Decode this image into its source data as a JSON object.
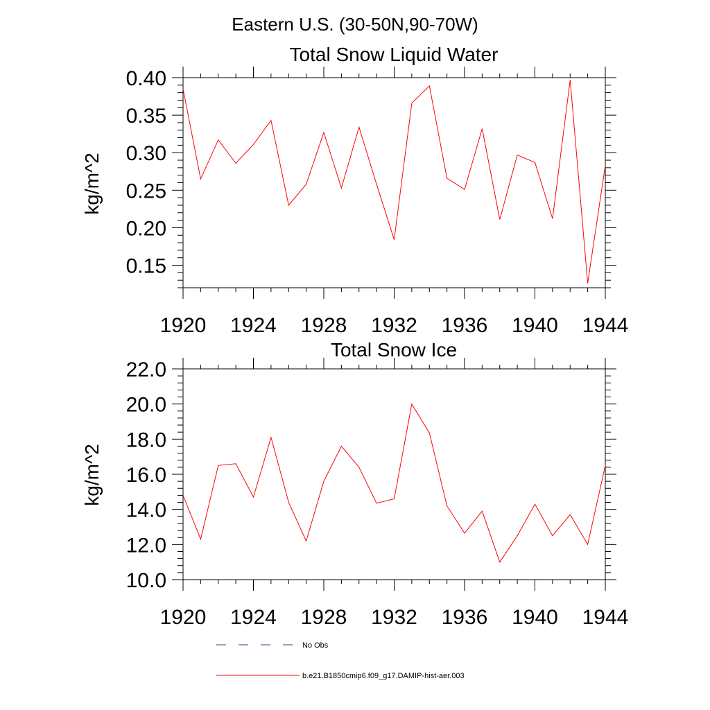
{
  "page_title": "Eastern U.S. (30-50N,90-70W)",
  "chart_data": [
    {
      "type": "line",
      "title": "Total Snow Liquid Water",
      "xlabel": "",
      "ylabel": "kg/m^2",
      "xlim": [
        1920,
        1944
      ],
      "ylim": [
        0.12,
        0.4
      ],
      "x_ticks": [
        "1920",
        "1924",
        "1928",
        "1932",
        "1936",
        "1940",
        "1944"
      ],
      "y_ticks": [
        "0.15",
        "0.20",
        "0.25",
        "0.30",
        "0.35",
        "0.40"
      ],
      "series": [
        {
          "name": "b.e21.B1850cmip6.f09_g17.DAMIP-hist-aer.003",
          "color": "#ff0000",
          "x": [
            1920,
            1921,
            1922,
            1923,
            1924,
            1925,
            1926,
            1927,
            1928,
            1929,
            1930,
            1931,
            1932,
            1933,
            1934,
            1935,
            1936,
            1937,
            1938,
            1939,
            1940,
            1941,
            1942,
            1943,
            1944
          ],
          "values": [
            0.385,
            0.265,
            0.317,
            0.286,
            0.311,
            0.343,
            0.23,
            0.258,
            0.327,
            0.253,
            0.334,
            0.258,
            0.184,
            0.366,
            0.389,
            0.266,
            0.251,
            0.332,
            0.211,
            0.297,
            0.287,
            0.212,
            0.397,
            0.126,
            0.283
          ]
        }
      ]
    },
    {
      "type": "line",
      "title": "Total Snow Ice",
      "xlabel": "",
      "ylabel": "kg/m^2",
      "xlim": [
        1920,
        1944
      ],
      "ylim": [
        10.0,
        22.0
      ],
      "x_ticks": [
        "1920",
        "1924",
        "1928",
        "1932",
        "1936",
        "1940",
        "1944"
      ],
      "y_ticks": [
        "10.0",
        "12.0",
        "14.0",
        "16.0",
        "18.0",
        "20.0",
        "22.0"
      ],
      "series": [
        {
          "name": "b.e21.B1850cmip6.f09_g17.DAMIP-hist-aer.003",
          "color": "#ff0000",
          "x": [
            1920,
            1921,
            1922,
            1923,
            1924,
            1925,
            1926,
            1927,
            1928,
            1929,
            1930,
            1931,
            1932,
            1933,
            1934,
            1935,
            1936,
            1937,
            1938,
            1939,
            1940,
            1941,
            1942,
            1943,
            1944
          ],
          "values": [
            14.8,
            12.3,
            16.5,
            16.6,
            14.7,
            18.1,
            14.4,
            12.2,
            15.6,
            17.6,
            16.4,
            14.35,
            14.6,
            20.0,
            18.35,
            14.2,
            12.65,
            13.9,
            11.0,
            12.5,
            14.3,
            12.5,
            13.7,
            12.0,
            16.5
          ]
        }
      ]
    }
  ],
  "legend": {
    "items": [
      {
        "label": "No Obs",
        "style": "dashed",
        "color": "#3a3a8c"
      },
      {
        "label": "b.e21.B1850cmip6.f09_g17.DAMIP-hist-aer.003",
        "style": "solid",
        "color": "#ff0000"
      }
    ]
  }
}
